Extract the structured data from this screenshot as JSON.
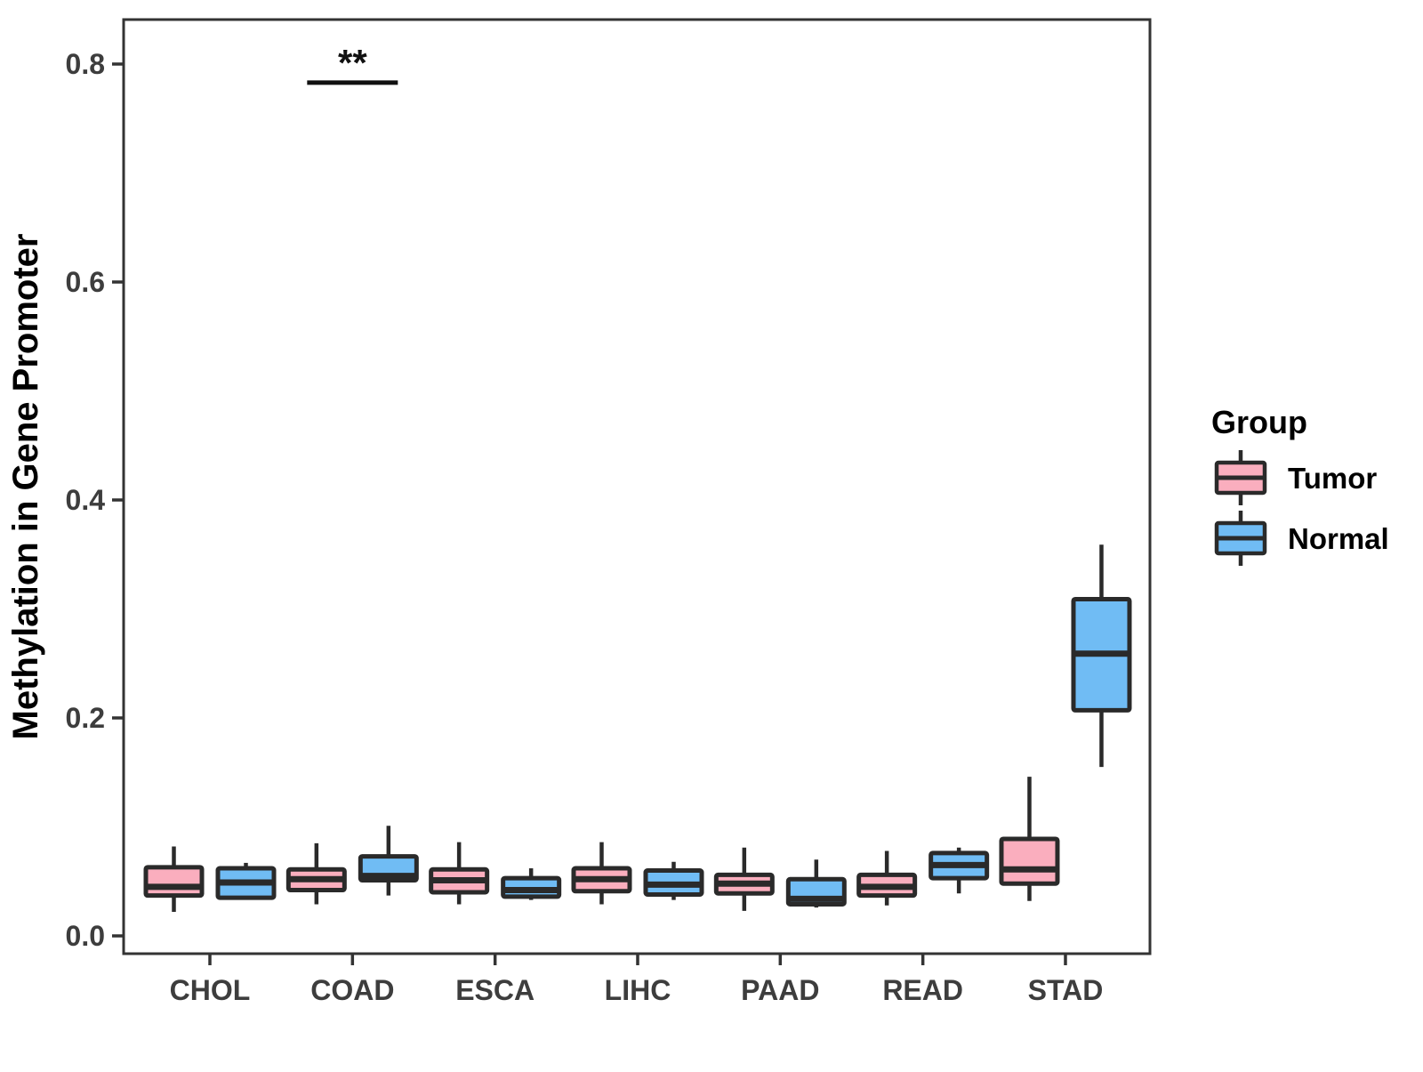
{
  "figure": {
    "y_axis_title": "Methylation in Gene Promoter",
    "significance_label": "**"
  },
  "legend": {
    "title": "Group",
    "items": [
      {
        "label": "Tumor",
        "color": "#FAAEBE"
      },
      {
        "label": "Normal",
        "color": "#70BCF4"
      }
    ]
  },
  "colors": {
    "tumor_fill": "#FAAEBE",
    "normal_fill": "#70BCF4",
    "box_stroke": "#2A2A2A",
    "axis_line": "#333333",
    "tick_text": "#3D3D3D",
    "title_text": "#000000",
    "background": "#FFFFFF"
  },
  "chart_data": {
    "type": "boxplot",
    "title": "",
    "xlabel": "",
    "ylabel": "Methylation in Gene Promoter",
    "ylim": [
      0.0,
      0.84
    ],
    "y_ticks": [
      0.0,
      0.2,
      0.4,
      0.6,
      0.8
    ],
    "y_tick_labels": [
      "0.0",
      "0.2",
      "0.4",
      "0.6",
      "0.8"
    ],
    "grid": false,
    "legend_position": "right",
    "categories": [
      "CHOL",
      "COAD",
      "ESCA",
      "LIHC",
      "PAAD",
      "READ",
      "STAD"
    ],
    "series": [
      {
        "name": "Tumor",
        "color": "#FAAEBE",
        "boxes": [
          {
            "category": "CHOL",
            "whisker_low": 0.022,
            "q1": 0.037,
            "median": 0.045,
            "q3": 0.063,
            "whisker_high": 0.082
          },
          {
            "category": "COAD",
            "whisker_low": 0.029,
            "q1": 0.042,
            "median": 0.052,
            "q3": 0.061,
            "whisker_high": 0.085
          },
          {
            "category": "ESCA",
            "whisker_low": 0.029,
            "q1": 0.04,
            "median": 0.051,
            "q3": 0.061,
            "whisker_high": 0.086
          },
          {
            "category": "LIHC",
            "whisker_low": 0.029,
            "q1": 0.041,
            "median": 0.052,
            "q3": 0.062,
            "whisker_high": 0.086
          },
          {
            "category": "PAAD",
            "whisker_low": 0.023,
            "q1": 0.039,
            "median": 0.048,
            "q3": 0.056,
            "whisker_high": 0.081
          },
          {
            "category": "READ",
            "whisker_low": 0.028,
            "q1": 0.037,
            "median": 0.045,
            "q3": 0.056,
            "whisker_high": 0.078
          },
          {
            "category": "STAD",
            "whisker_low": 0.032,
            "q1": 0.048,
            "median": 0.061,
            "q3": 0.089,
            "whisker_high": 0.146
          }
        ]
      },
      {
        "name": "Normal",
        "color": "#70BCF4",
        "boxes": [
          {
            "category": "CHOL",
            "whisker_low": 0.034,
            "q1": 0.035,
            "median": 0.049,
            "q3": 0.062,
            "whisker_high": 0.067
          },
          {
            "category": "COAD",
            "whisker_low": 0.037,
            "q1": 0.051,
            "median": 0.055,
            "q3": 0.073,
            "whisker_high": 0.101
          },
          {
            "category": "ESCA",
            "whisker_low": 0.033,
            "q1": 0.036,
            "median": 0.042,
            "q3": 0.053,
            "whisker_high": 0.062
          },
          {
            "category": "LIHC",
            "whisker_low": 0.033,
            "q1": 0.038,
            "median": 0.047,
            "q3": 0.06,
            "whisker_high": 0.068
          },
          {
            "category": "PAAD",
            "whisker_low": 0.026,
            "q1": 0.029,
            "median": 0.034,
            "q3": 0.052,
            "whisker_high": 0.07
          },
          {
            "category": "READ",
            "whisker_low": 0.039,
            "q1": 0.053,
            "median": 0.065,
            "q3": 0.076,
            "whisker_high": 0.081
          },
          {
            "category": "STAD",
            "whisker_low": 0.155,
            "q1": 0.207,
            "median": 0.259,
            "q3": 0.309,
            "whisker_high": 0.359
          }
        ]
      }
    ],
    "annotations": [
      {
        "type": "significance",
        "category": "COAD",
        "label": "**",
        "bar_y": 0.783,
        "label_y": 0.8
      }
    ]
  }
}
